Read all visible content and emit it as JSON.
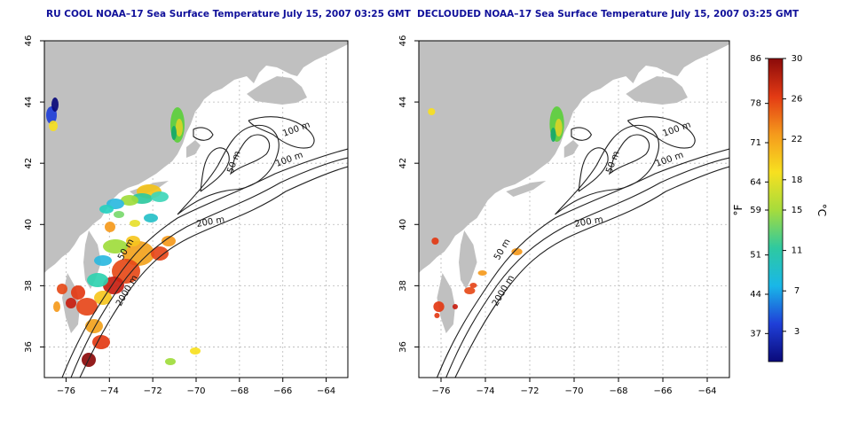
{
  "panels": [
    {
      "title": "RU COOL NOAA–17 Sea Surface Temperature July 15, 2007 03:25 GMT",
      "variant": "raw"
    },
    {
      "title": "DECLOUDED NOAA–17 Sea Surface Temperature July 15, 2007 03:25 GMT",
      "variant": "declouded"
    }
  ],
  "axes": {
    "lon_ticks": [
      "−76",
      "−74",
      "−72",
      "−70",
      "−68",
      "−66",
      "−64"
    ],
    "lat_ticks": [
      "36",
      "38",
      "40",
      "42",
      "44",
      "46"
    ],
    "lon_range": [
      -77,
      -63
    ],
    "lat_range": [
      35,
      46
    ]
  },
  "contour_labels": {
    "left": [
      "100 m",
      "100 m",
      "50 m",
      "200 m",
      "50 m",
      "2000 m"
    ],
    "right": [
      "100 m",
      "100 m",
      "50 m",
      "200 m",
      "50 m",
      "2000 m"
    ]
  },
  "colorbar": {
    "fahrenheit_ticks": [
      "86",
      "78",
      "71",
      "64",
      "59",
      "51",
      "44",
      "37"
    ],
    "celsius_ticks": [
      "30",
      "26",
      "22",
      "18",
      "15",
      "11",
      "7",
      "3"
    ],
    "unit_f": "°F",
    "unit_c": "°C",
    "gradient_stops": [
      "#0a0a7a",
      "#1f3fd8",
      "#19b7e8",
      "#2ec9a0",
      "#a6dc3c",
      "#f7e020",
      "#f59a1c",
      "#e33a14",
      "#8b0a0a"
    ]
  },
  "colors": {
    "land": "#c0c0c0",
    "ocean": "#ffffff",
    "title": "#10109a",
    "grid": "#b8b8b8"
  }
}
